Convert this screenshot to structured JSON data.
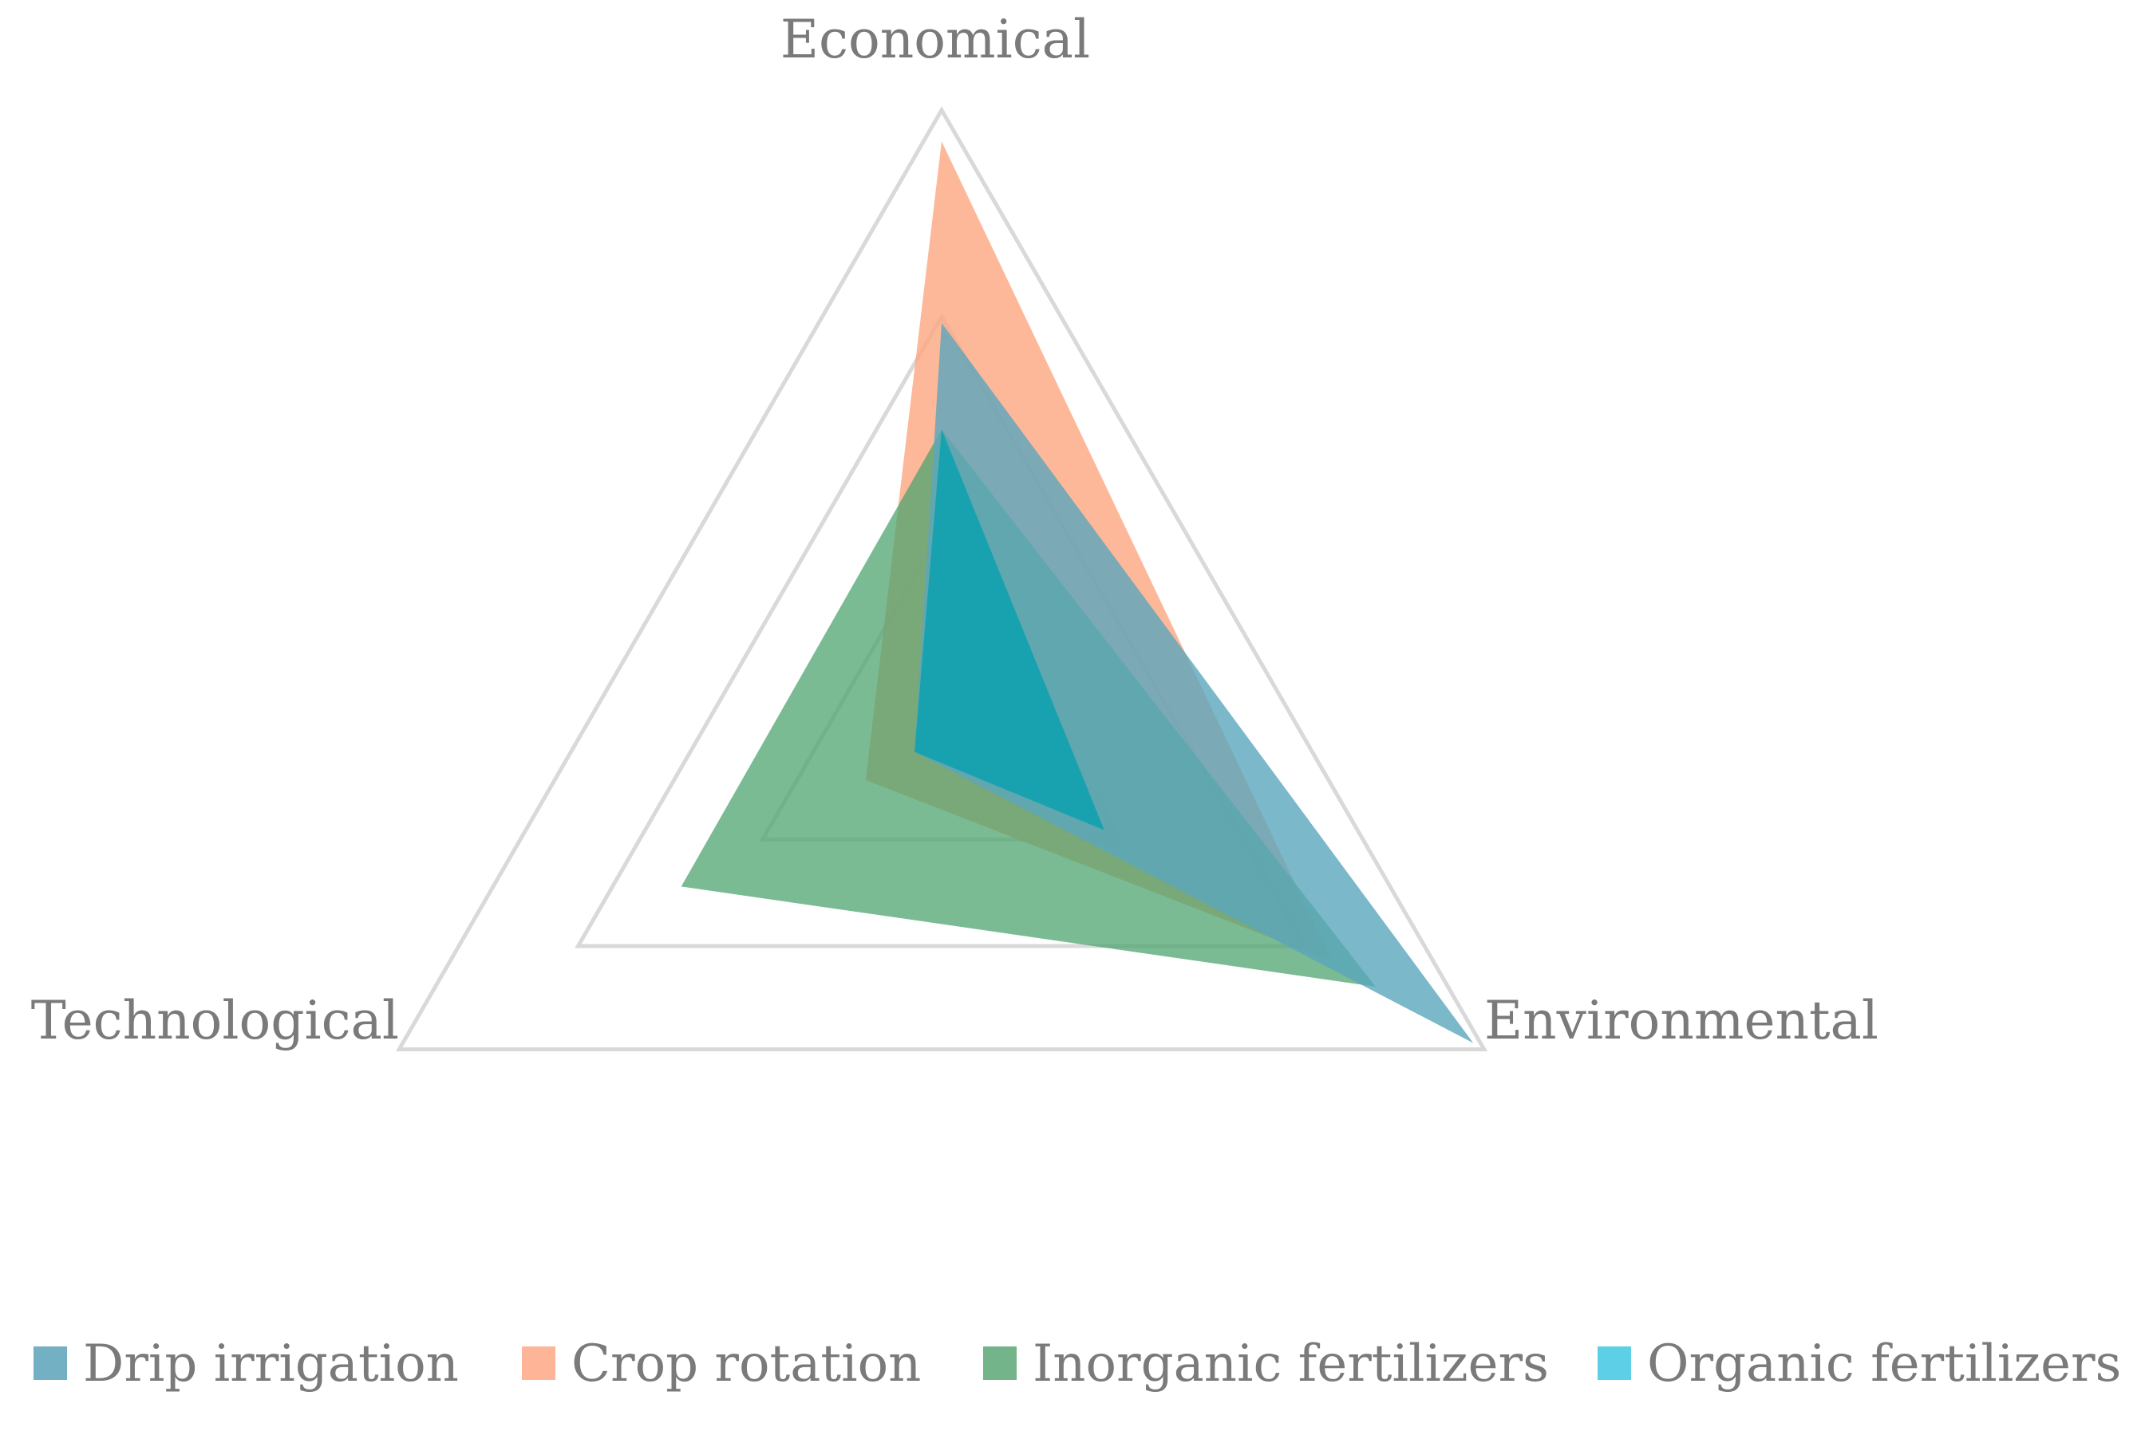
{
  "chart_data": {
    "type": "radar",
    "axes": [
      "Economical",
      "Environmental",
      "Technological"
    ],
    "rmax": 1.0,
    "gridlines": [
      0.33,
      0.67,
      1.0
    ],
    "grid": true,
    "legend_position": "bottom",
    "series": [
      {
        "name": "Crop rotation",
        "color": "#fca57f",
        "opacity": 0.8,
        "values": {
          "Economical": 0.95,
          "Environmental": 0.72,
          "Technological": 0.14
        }
      },
      {
        "name": "Inorganic fertilizers",
        "color": "#4ea46f",
        "opacity": 0.75,
        "values": {
          "Economical": 0.49,
          "Environmental": 0.8,
          "Technological": 0.48
        }
      },
      {
        "name": "Drip irrigation",
        "color": "#5aa6bd",
        "opacity": 0.8,
        "values": {
          "Economical": 0.66,
          "Environmental": 0.98,
          "Technological": 0.05
        }
      },
      {
        "name": "Organic fertilizers",
        "color": "#00a0b0",
        "opacity": 0.75,
        "values": {
          "Economical": 0.49,
          "Environmental": 0.3,
          "Technological": 0.05
        }
      }
    ],
    "legend": [
      {
        "name": "Drip irrigation",
        "color": "#74b0c3"
      },
      {
        "name": "Crop rotation",
        "color": "#fdb497"
      },
      {
        "name": "Inorganic fertilizers",
        "color": "#74b48a"
      },
      {
        "name": "Organic fertilizers",
        "color": "#5dcfe6"
      }
    ]
  }
}
